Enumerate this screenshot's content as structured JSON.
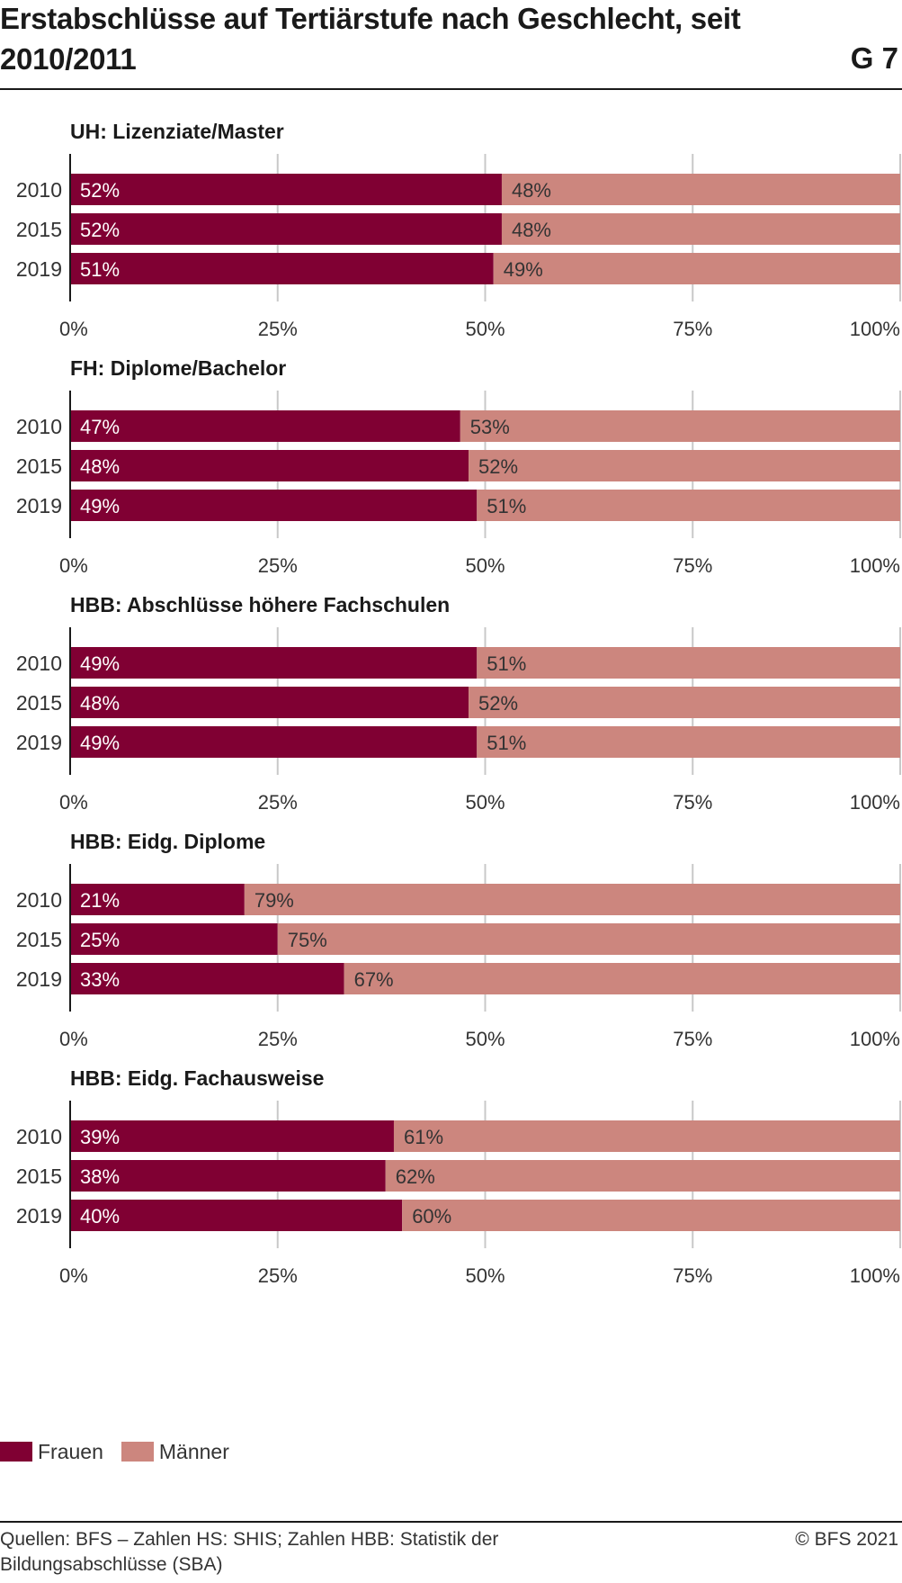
{
  "header": {
    "title": "Erstabschlüsse auf Tertiärstufe nach Geschlecht, seit 2010/2011",
    "chart_number": "G 7"
  },
  "colors": {
    "frauen": "#800033",
    "maenner": "#cc867e",
    "grid": "#c8c8c8",
    "axis": "#1a1a1a"
  },
  "legend": {
    "frauen": "Frauen",
    "maenner": "Männer"
  },
  "footer": {
    "source": "Quellen: BFS – Zahlen HS: SHIS; Zahlen HBB: Statistik der Bildungsabschlüsse (SBA)",
    "copyright": "© BFS 2021"
  },
  "chart_data": [
    {
      "type": "bar",
      "orientation": "horizontal",
      "stacked": "percent",
      "title": "UH: Lizenziate/Master",
      "categories": [
        "2010",
        "2015",
        "2019"
      ],
      "series": [
        {
          "name": "Frauen",
          "values": [
            52,
            52,
            51
          ]
        },
        {
          "name": "Männer",
          "values": [
            48,
            48,
            49
          ]
        }
      ],
      "xlim": [
        0,
        100
      ],
      "xticks": [
        "0%",
        "25%",
        "50%",
        "75%",
        "100%"
      ]
    },
    {
      "type": "bar",
      "orientation": "horizontal",
      "stacked": "percent",
      "title": "FH: Diplome/Bachelor",
      "categories": [
        "2010",
        "2015",
        "2019"
      ],
      "series": [
        {
          "name": "Frauen",
          "values": [
            47,
            48,
            49
          ]
        },
        {
          "name": "Männer",
          "values": [
            53,
            52,
            51
          ]
        }
      ],
      "xlim": [
        0,
        100
      ],
      "xticks": [
        "0%",
        "25%",
        "50%",
        "75%",
        "100%"
      ]
    },
    {
      "type": "bar",
      "orientation": "horizontal",
      "stacked": "percent",
      "title": "HBB: Abschlüsse höhere Fachschulen",
      "categories": [
        "2010",
        "2015",
        "2019"
      ],
      "series": [
        {
          "name": "Frauen",
          "values": [
            49,
            48,
            49
          ]
        },
        {
          "name": "Männer",
          "values": [
            51,
            52,
            51
          ]
        }
      ],
      "xlim": [
        0,
        100
      ],
      "xticks": [
        "0%",
        "25%",
        "50%",
        "75%",
        "100%"
      ]
    },
    {
      "type": "bar",
      "orientation": "horizontal",
      "stacked": "percent",
      "title": "HBB: Eidg. Diplome",
      "categories": [
        "2010",
        "2015",
        "2019"
      ],
      "series": [
        {
          "name": "Frauen",
          "values": [
            21,
            25,
            33
          ]
        },
        {
          "name": "Männer",
          "values": [
            79,
            75,
            67
          ]
        }
      ],
      "xlim": [
        0,
        100
      ],
      "xticks": [
        "0%",
        "25%",
        "50%",
        "75%",
        "100%"
      ]
    },
    {
      "type": "bar",
      "orientation": "horizontal",
      "stacked": "percent",
      "title": "HBB: Eidg. Fachausweise",
      "categories": [
        "2010",
        "2015",
        "2019"
      ],
      "series": [
        {
          "name": "Frauen",
          "values": [
            39,
            38,
            40
          ]
        },
        {
          "name": "Männer",
          "values": [
            61,
            62,
            60
          ]
        }
      ],
      "xlim": [
        0,
        100
      ],
      "xticks": [
        "0%",
        "25%",
        "50%",
        "75%",
        "100%"
      ]
    }
  ]
}
